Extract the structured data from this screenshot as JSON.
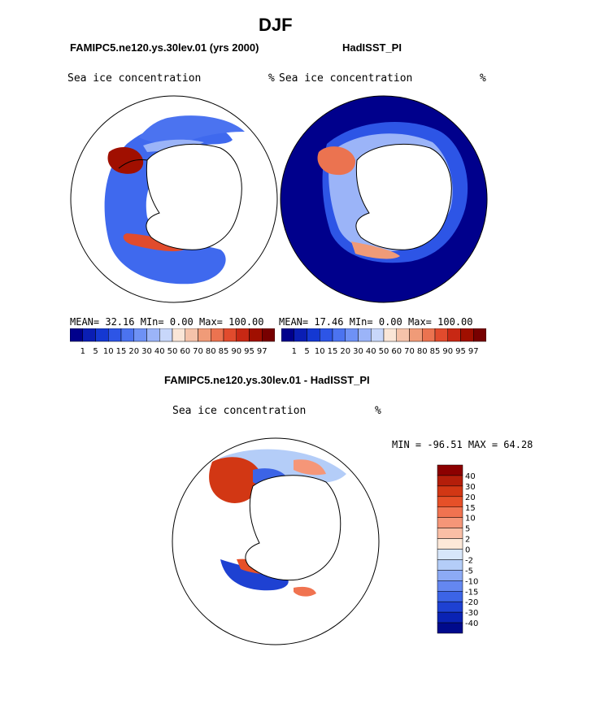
{
  "page_title": "DJF",
  "panels": {
    "left": {
      "subtitle": "FAMIPC5.ne120.ys.30lev.01 (yrs 2000)",
      "field_label": "Sea ice concentration",
      "unit": "%",
      "stats": {
        "mean_label": "MEAN=",
        "mean": "32.16",
        "min_label": "MIn=",
        "min": "0.00",
        "max_label": "Max=",
        "max": "100.00"
      }
    },
    "right": {
      "subtitle": "HadISST_PI",
      "field_label": "Sea ice concentration",
      "unit": "%",
      "stats": {
        "mean_label": "MEAN=",
        "mean": "17.46",
        "min_label": "MIn=",
        "min": "0.00",
        "max_label": "Max=",
        "max": "100.00"
      }
    },
    "diff": {
      "subtitle": "FAMIPC5.ne120.ys.30lev.01 - HadISST_PI",
      "field_label": "Sea ice concentration",
      "unit": "%",
      "stats_text": "MIN = -96.51 MAX =  64.28"
    }
  },
  "chart_data": [
    {
      "type": "heatmap",
      "title": "FAMIPC5.ne120.ys.30lev.01 (yrs 2000)",
      "projection": "south-polar-stereographic",
      "variable": "Sea ice concentration",
      "unit": "%",
      "mean": 32.16,
      "min": 0.0,
      "max": 100.0,
      "colorbar": {
        "labels": [
          "1",
          "5",
          "10",
          "15",
          "20",
          "30",
          "40",
          "50",
          "60",
          "70",
          "80",
          "85",
          "90",
          "95",
          "97"
        ],
        "colors": [
          "#00008c",
          "#0a1eb4",
          "#1438d2",
          "#2d55e6",
          "#4b73f0",
          "#6e91f5",
          "#9bb4f8",
          "#c8d7fa",
          "#fae6d7",
          "#f5c3aa",
          "#f09b78",
          "#eb7350",
          "#e14b2d",
          "#c82814",
          "#a00f00",
          "#780000"
        ]
      }
    },
    {
      "type": "heatmap",
      "title": "HadISST_PI",
      "projection": "south-polar-stereographic",
      "variable": "Sea ice concentration",
      "unit": "%",
      "mean": 17.46,
      "min": 0.0,
      "max": 100.0,
      "colorbar": {
        "labels": [
          "1",
          "5",
          "10",
          "15",
          "20",
          "30",
          "40",
          "50",
          "60",
          "70",
          "80",
          "85",
          "90",
          "95",
          "97"
        ],
        "colors": [
          "#00008c",
          "#0a1eb4",
          "#1438d2",
          "#2d55e6",
          "#4b73f0",
          "#6e91f5",
          "#9bb4f8",
          "#c8d7fa",
          "#fae6d7",
          "#f5c3aa",
          "#f09b78",
          "#eb7350",
          "#e14b2d",
          "#c82814",
          "#a00f00",
          "#780000"
        ]
      }
    },
    {
      "type": "heatmap",
      "title": "FAMIPC5.ne120.ys.30lev.01 - HadISST_PI",
      "projection": "south-polar-stereographic",
      "variable": "Sea ice concentration",
      "unit": "%",
      "min": -96.51,
      "max": 64.28,
      "colorbar": {
        "labels": [
          "40",
          "30",
          "20",
          "15",
          "10",
          "5",
          "2",
          "0",
          "-2",
          "-5",
          "-10",
          "-15",
          "-20",
          "-30",
          "-40"
        ],
        "colors": [
          "#8c0000",
          "#b41e0a",
          "#d23714",
          "#e65028",
          "#f07350",
          "#f59678",
          "#fabea5",
          "#fde8d8",
          "#d7e6fa",
          "#b4cdf8",
          "#8caaf5",
          "#6487f0",
          "#3c64e6",
          "#1e41d2",
          "#0a23b4",
          "#000a8c"
        ]
      }
    }
  ]
}
